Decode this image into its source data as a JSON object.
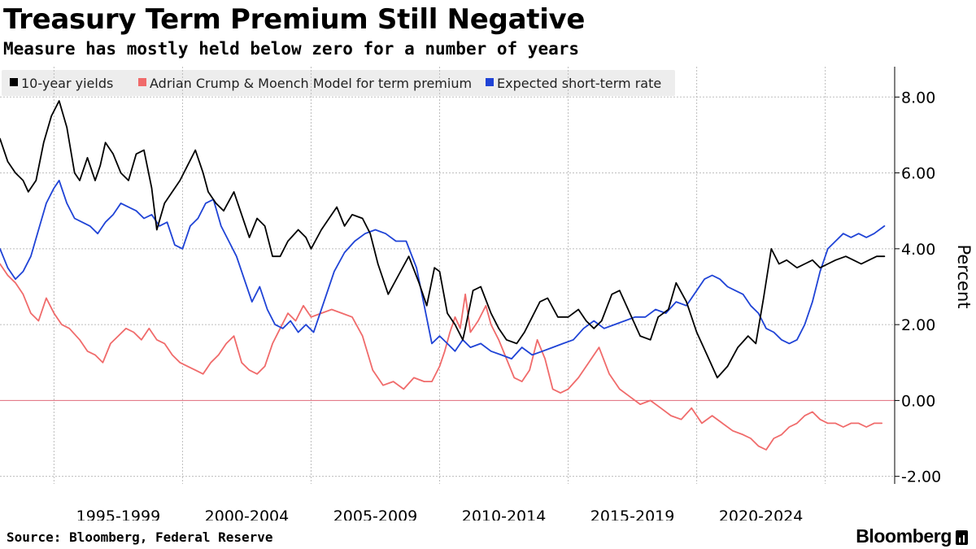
{
  "header": {
    "title": "Treasury Term Premium Still Negative",
    "subtitle": "Measure has mostly held below zero for a number of years"
  },
  "footer": {
    "source": "Source: Bloomberg, Federal Reserve",
    "brand": "Bloomberg"
  },
  "colors": {
    "ten_year": "#000000",
    "term_premium": "#f06b6b",
    "expected_rate": "#1f43d6",
    "zero_line": "#e06a7a",
    "grid": "#bdbdbd",
    "legend_bg": "#ededed"
  },
  "chart_data": {
    "type": "line",
    "title": "Treasury Term Premium Still Negative",
    "subtitle": "Measure has mostly held below zero for a number of years",
    "ylabel": "Percent",
    "xlabel": "",
    "xlim": [
      1990.9,
      2025.7
    ],
    "ylim": [
      -2.2,
      8.8
    ],
    "y_ticks": [
      8,
      6,
      4,
      2,
      0,
      -2
    ],
    "y_tick_labels": [
      "8.00",
      "6.00",
      "4.00",
      "2.00",
      "0.00",
      "-2.00"
    ],
    "x_gridlines": [
      1993,
      1998,
      2003,
      2008,
      2013,
      2018,
      2023
    ],
    "x_tick_labels": [
      {
        "label": "1995-1999",
        "x": 1995.5
      },
      {
        "label": "2000-2004",
        "x": 2000.5
      },
      {
        "label": "2005-2009",
        "x": 2005.5
      },
      {
        "label": "2010-2014",
        "x": 2010.5
      },
      {
        "label": "2015-2019",
        "x": 2015.5
      },
      {
        "label": "2020-2024",
        "x": 2020.5
      }
    ],
    "zero_line": 0,
    "grid": true,
    "legend_position": "top-left",
    "series": [
      {
        "name": "10-year yields",
        "color_key": "ten_year",
        "x": [
          1990.9,
          1991.2,
          1991.5,
          1991.8,
          1992.0,
          1992.3,
          1992.6,
          1992.9,
          1993.2,
          1993.5,
          1993.8,
          1994.0,
          1994.3,
          1994.6,
          1994.8,
          1995.0,
          1995.3,
          1995.6,
          1995.9,
          1996.2,
          1996.5,
          1996.8,
          1997.0,
          1997.3,
          1997.6,
          1997.9,
          1998.2,
          1998.5,
          1998.8,
          1999.0,
          1999.3,
          1999.6,
          2000.0,
          2000.3,
          2000.6,
          2000.9,
          2001.2,
          2001.5,
          2001.8,
          2002.1,
          2002.5,
          2002.8,
          2003.0,
          2003.4,
          2003.7,
          2004.0,
          2004.3,
          2004.6,
          2005.0,
          2005.3,
          2005.6,
          2006.0,
          2006.4,
          2006.8,
          2007.2,
          2007.5,
          2007.8,
          2008.0,
          2008.3,
          2008.6,
          2008.9,
          2009.0,
          2009.3,
          2009.6,
          2010.0,
          2010.3,
          2010.6,
          2011.0,
          2011.3,
          2011.6,
          2011.9,
          2012.2,
          2012.6,
          2013.0,
          2013.4,
          2013.7,
          2014.0,
          2014.3,
          2014.7,
          2015.0,
          2015.4,
          2015.8,
          2016.2,
          2016.5,
          2016.9,
          2017.2,
          2017.6,
          2018.0,
          2018.4,
          2018.8,
          2019.2,
          2019.6,
          2020.0,
          2020.3,
          2020.6,
          2020.9,
          2021.2,
          2021.5,
          2021.9,
          2022.2,
          2022.5,
          2022.8,
          2023.1,
          2023.4,
          2023.8,
          2024.1,
          2024.4,
          2024.7,
          2025.0,
          2025.3
        ],
        "values": [
          6.9,
          6.3,
          6.0,
          5.8,
          5.5,
          5.8,
          6.8,
          7.5,
          7.9,
          7.2,
          6.0,
          5.8,
          6.4,
          5.8,
          6.2,
          6.8,
          6.5,
          6.0,
          5.8,
          6.5,
          6.6,
          5.6,
          4.5,
          5.2,
          5.5,
          5.8,
          6.2,
          6.6,
          6.0,
          5.5,
          5.2,
          5.0,
          5.5,
          4.9,
          4.3,
          4.8,
          4.6,
          3.8,
          3.8,
          4.2,
          4.5,
          4.3,
          4.0,
          4.5,
          4.8,
          5.1,
          4.6,
          4.9,
          4.8,
          4.4,
          3.6,
          2.8,
          3.3,
          3.8,
          3.1,
          2.5,
          3.5,
          3.4,
          2.3,
          2.0,
          1.6,
          1.9,
          2.9,
          3.0,
          2.3,
          1.9,
          1.6,
          1.5,
          1.8,
          2.2,
          2.6,
          2.7,
          2.2,
          2.2,
          2.4,
          2.1,
          1.9,
          2.1,
          2.8,
          2.9,
          2.3,
          1.7,
          1.6,
          2.2,
          2.4,
          3.1,
          2.6,
          1.8,
          1.2,
          0.6,
          0.9,
          1.4,
          1.7,
          1.5,
          2.7,
          4.0,
          3.6,
          3.7,
          3.5,
          3.6,
          3.7,
          3.5,
          3.6,
          3.7,
          3.8,
          3.7,
          3.6,
          3.7,
          3.8,
          3.8
        ]
      },
      {
        "name": "Adrian Crump & Moench Model for term premium",
        "color_key": "term_premium",
        "x": [
          1990.9,
          1991.2,
          1991.5,
          1991.8,
          1992.1,
          1992.4,
          1992.7,
          1993.0,
          1993.3,
          1993.6,
          1994.0,
          1994.3,
          1994.6,
          1994.9,
          1995.2,
          1995.5,
          1995.8,
          1996.1,
          1996.4,
          1996.7,
          1997.0,
          1997.3,
          1997.6,
          1997.9,
          1998.2,
          1998.5,
          1998.8,
          1999.1,
          1999.4,
          1999.7,
          2000.0,
          2000.3,
          2000.6,
          2000.9,
          2001.2,
          2001.5,
          2001.8,
          2002.1,
          2002.4,
          2002.7,
          2003.0,
          2003.4,
          2003.8,
          2004.2,
          2004.6,
          2005.0,
          2005.4,
          2005.8,
          2006.2,
          2006.6,
          2007.0,
          2007.4,
          2007.7,
          2008.0,
          2008.2,
          2008.4,
          2008.6,
          2008.8,
          2009.0,
          2009.2,
          2009.5,
          2009.8,
          2010.0,
          2010.3,
          2010.6,
          2010.9,
          2011.2,
          2011.5,
          2011.8,
          2012.1,
          2012.4,
          2012.7,
          2013.0,
          2013.4,
          2013.8,
          2014.2,
          2014.6,
          2015.0,
          2015.4,
          2015.8,
          2016.2,
          2016.6,
          2017.0,
          2017.4,
          2017.8,
          2018.2,
          2018.6,
          2019.0,
          2019.4,
          2019.8,
          2020.1,
          2020.4,
          2020.7,
          2021.0,
          2021.3,
          2021.6,
          2021.9,
          2022.2,
          2022.5,
          2022.8,
          2023.1,
          2023.4,
          2023.7,
          2024.0,
          2024.3,
          2024.6,
          2024.9,
          2025.2
        ],
        "values": [
          3.6,
          3.3,
          3.1,
          2.8,
          2.3,
          2.1,
          2.7,
          2.3,
          2.0,
          1.9,
          1.6,
          1.3,
          1.2,
          1.0,
          1.5,
          1.7,
          1.9,
          1.8,
          1.6,
          1.9,
          1.6,
          1.5,
          1.2,
          1.0,
          0.9,
          0.8,
          0.7,
          1.0,
          1.2,
          1.5,
          1.7,
          1.0,
          0.8,
          0.7,
          0.9,
          1.5,
          1.9,
          2.3,
          2.1,
          2.5,
          2.2,
          2.3,
          2.4,
          2.3,
          2.2,
          1.7,
          0.8,
          0.4,
          0.5,
          0.3,
          0.6,
          0.5,
          0.5,
          0.9,
          1.3,
          1.8,
          2.2,
          1.9,
          2.8,
          1.8,
          2.1,
          2.5,
          2.0,
          1.6,
          1.1,
          0.6,
          0.5,
          0.8,
          1.6,
          1.1,
          0.3,
          0.2,
          0.3,
          0.6,
          1.0,
          1.4,
          0.7,
          0.3,
          0.1,
          -0.1,
          0.0,
          -0.2,
          -0.4,
          -0.5,
          -0.2,
          -0.6,
          -0.4,
          -0.6,
          -0.8,
          -0.9,
          -1.0,
          -1.2,
          -1.3,
          -1.0,
          -0.9,
          -0.7,
          -0.6,
          -0.4,
          -0.3,
          -0.5,
          -0.6,
          -0.6,
          -0.7,
          -0.6,
          -0.6,
          -0.7,
          -0.6,
          -0.6
        ]
      },
      {
        "name": "Expected short-term rate",
        "color_key": "expected_rate",
        "x": [
          1990.9,
          1991.2,
          1991.5,
          1991.8,
          1992.1,
          1992.4,
          1992.7,
          1993.0,
          1993.2,
          1993.5,
          1993.8,
          1994.1,
          1994.4,
          1994.7,
          1995.0,
          1995.3,
          1995.6,
          1995.9,
          1996.2,
          1996.5,
          1996.8,
          1997.1,
          1997.4,
          1997.7,
          1998.0,
          1998.3,
          1998.6,
          1998.9,
          1999.2,
          1999.5,
          1999.8,
          2000.1,
          2000.4,
          2000.7,
          2001.0,
          2001.3,
          2001.6,
          2001.9,
          2002.2,
          2002.5,
          2002.8,
          2003.1,
          2003.5,
          2003.9,
          2004.3,
          2004.7,
          2005.1,
          2005.5,
          2005.9,
          2006.3,
          2006.7,
          2007.1,
          2007.4,
          2007.7,
          2008.0,
          2008.3,
          2008.6,
          2008.9,
          2009.2,
          2009.6,
          2010.0,
          2010.4,
          2010.8,
          2011.2,
          2011.6,
          2012.0,
          2012.4,
          2012.8,
          2013.2,
          2013.6,
          2014.0,
          2014.4,
          2014.8,
          2015.2,
          2015.6,
          2016.0,
          2016.4,
          2016.8,
          2017.2,
          2017.6,
          2018.0,
          2018.3,
          2018.6,
          2018.9,
          2019.2,
          2019.5,
          2019.8,
          2020.1,
          2020.4,
          2020.7,
          2021.0,
          2021.3,
          2021.6,
          2021.9,
          2022.2,
          2022.5,
          2022.8,
          2023.1,
          2023.4,
          2023.7,
          2024.0,
          2024.3,
          2024.6,
          2024.9,
          2025.3
        ],
        "values": [
          4.0,
          3.5,
          3.2,
          3.4,
          3.8,
          4.5,
          5.2,
          5.6,
          5.8,
          5.2,
          4.8,
          4.7,
          4.6,
          4.4,
          4.7,
          4.9,
          5.2,
          5.1,
          5.0,
          4.8,
          4.9,
          4.6,
          4.7,
          4.1,
          4.0,
          4.6,
          4.8,
          5.2,
          5.3,
          4.6,
          4.2,
          3.8,
          3.2,
          2.6,
          3.0,
          2.4,
          2.0,
          1.9,
          2.1,
          1.8,
          2.0,
          1.8,
          2.6,
          3.4,
          3.9,
          4.2,
          4.4,
          4.5,
          4.4,
          4.2,
          4.2,
          3.5,
          2.5,
          1.5,
          1.7,
          1.5,
          1.3,
          1.6,
          1.4,
          1.5,
          1.3,
          1.2,
          1.1,
          1.4,
          1.2,
          1.3,
          1.4,
          1.5,
          1.6,
          1.9,
          2.1,
          1.9,
          2.0,
          2.1,
          2.2,
          2.2,
          2.4,
          2.3,
          2.6,
          2.5,
          2.9,
          3.2,
          3.3,
          3.2,
          3.0,
          2.9,
          2.8,
          2.5,
          2.3,
          1.9,
          1.8,
          1.6,
          1.5,
          1.6,
          2.0,
          2.6,
          3.4,
          4.0,
          4.2,
          4.4,
          4.3,
          4.4,
          4.3,
          4.4,
          4.6
        ]
      }
    ]
  }
}
